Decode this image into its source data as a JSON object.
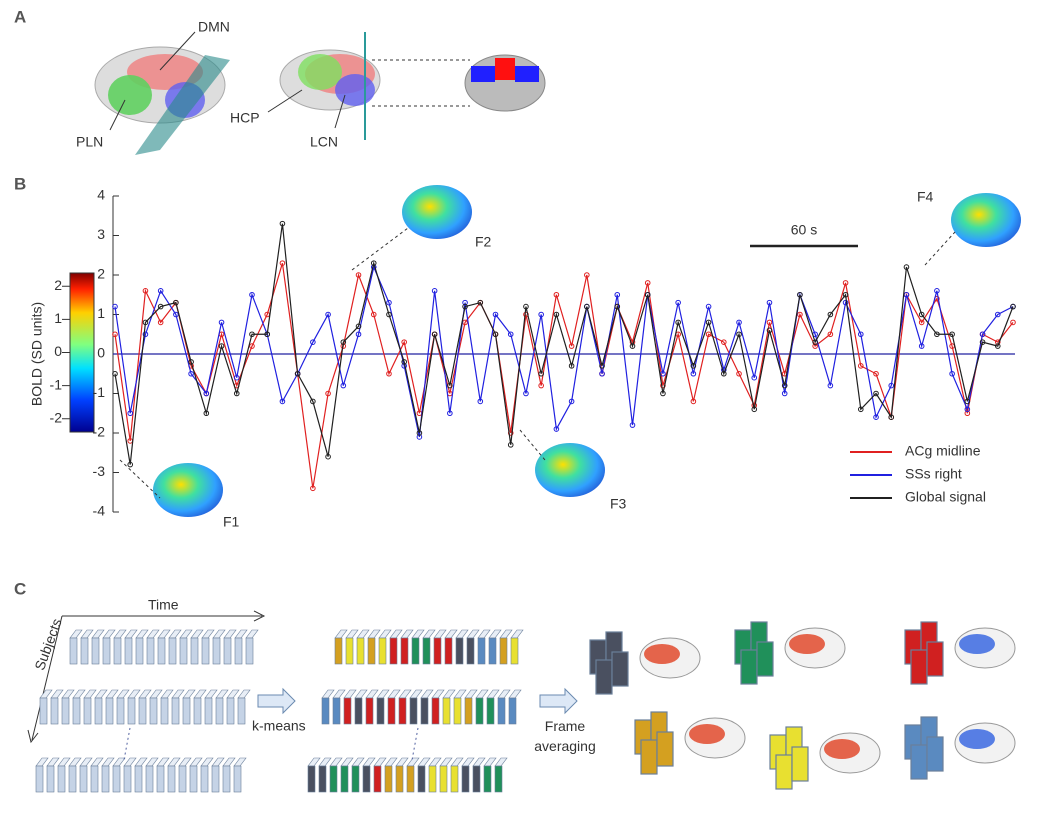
{
  "panel_a": {
    "label": "A",
    "regions": [
      "DMN",
      "PLN",
      "HCP",
      "LCN"
    ]
  },
  "chart_data": {
    "type": "line",
    "label": "B",
    "y_label": "BOLD (SD units)",
    "ylim": [
      -4,
      4
    ],
    "yticks": [
      -4,
      -3,
      -2,
      -1,
      0,
      1,
      2,
      3,
      4
    ],
    "scale_bar": "60 s",
    "frames": [
      "F1",
      "F2",
      "F3",
      "F4"
    ],
    "colorbar_lim": [
      -2.4,
      2.4
    ],
    "colorbar_ticks": [
      -2,
      -1,
      0,
      1,
      2
    ],
    "series": [
      {
        "name": "ACg midline",
        "color": "#e02020",
        "values": [
          0.5,
          -2.2,
          1.6,
          0.8,
          1.3,
          -0.3,
          -1.0,
          0.5,
          -0.8,
          0.2,
          1.0,
          2.3,
          -0.5,
          -3.4,
          -1.0,
          0.2,
          2.0,
          1.0,
          -0.5,
          0.3,
          -1.5,
          0.5,
          -1.0,
          0.8,
          1.3,
          0.5,
          -2.0,
          1.0,
          -0.8,
          1.5,
          0.2,
          2.0,
          -0.5,
          1.2,
          0.3,
          1.8,
          -0.8,
          0.5,
          -1.2,
          0.5,
          0.3,
          -0.5,
          -1.3,
          0.8,
          -0.5,
          1.0,
          0.2,
          0.5,
          1.8,
          -0.3,
          -0.5,
          -1.6,
          1.5,
          0.8,
          1.4,
          0.2,
          -1.5,
          0.5,
          0.3,
          0.8
        ]
      },
      {
        "name": "SSs right",
        "color": "#2020e0",
        "values": [
          1.2,
          -1.5,
          0.5,
          1.6,
          1.0,
          -0.5,
          -1.0,
          0.8,
          -0.6,
          1.5,
          0.5,
          -1.2,
          -0.5,
          0.3,
          1.0,
          -0.8,
          0.5,
          2.2,
          1.3,
          -0.3,
          -2.1,
          1.6,
          -1.5,
          1.3,
          -1.2,
          1.0,
          0.5,
          -1.0,
          1.0,
          -1.9,
          -1.2,
          1.2,
          -0.5,
          1.5,
          -1.8,
          1.5,
          -0.5,
          1.3,
          -0.5,
          1.2,
          -0.4,
          0.8,
          -0.6,
          1.3,
          -1.0,
          1.5,
          0.5,
          -0.8,
          1.3,
          0.5,
          -1.6,
          -0.8,
          1.5,
          0.2,
          1.6,
          -0.5,
          -1.4,
          0.5,
          1.0,
          1.2
        ]
      },
      {
        "name": "Global signal",
        "color": "#202020",
        "values": [
          -0.5,
          -2.8,
          0.8,
          1.2,
          1.3,
          -0.2,
          -1.5,
          0.2,
          -1.0,
          0.5,
          0.5,
          3.3,
          -0.5,
          -1.2,
          -2.6,
          0.3,
          0.7,
          2.3,
          1.0,
          -0.2,
          -2.0,
          0.5,
          -0.8,
          1.2,
          1.3,
          0.5,
          -2.3,
          1.2,
          -0.5,
          1.0,
          -0.3,
          1.2,
          -0.3,
          1.2,
          0.2,
          1.5,
          -1.0,
          0.8,
          -0.3,
          0.8,
          -0.5,
          0.5,
          -1.4,
          0.6,
          -0.8,
          1.5,
          0.3,
          1.0,
          1.5,
          -1.4,
          -1.0,
          -1.6,
          2.2,
          1.0,
          0.5,
          0.5,
          -1.2,
          0.3,
          0.2,
          1.2
        ]
      }
    ]
  },
  "panel_c": {
    "label": "C",
    "time": "Time",
    "subjects": "Subjects",
    "kmeans": "k-means",
    "averaging": "Frame\naveraging"
  }
}
